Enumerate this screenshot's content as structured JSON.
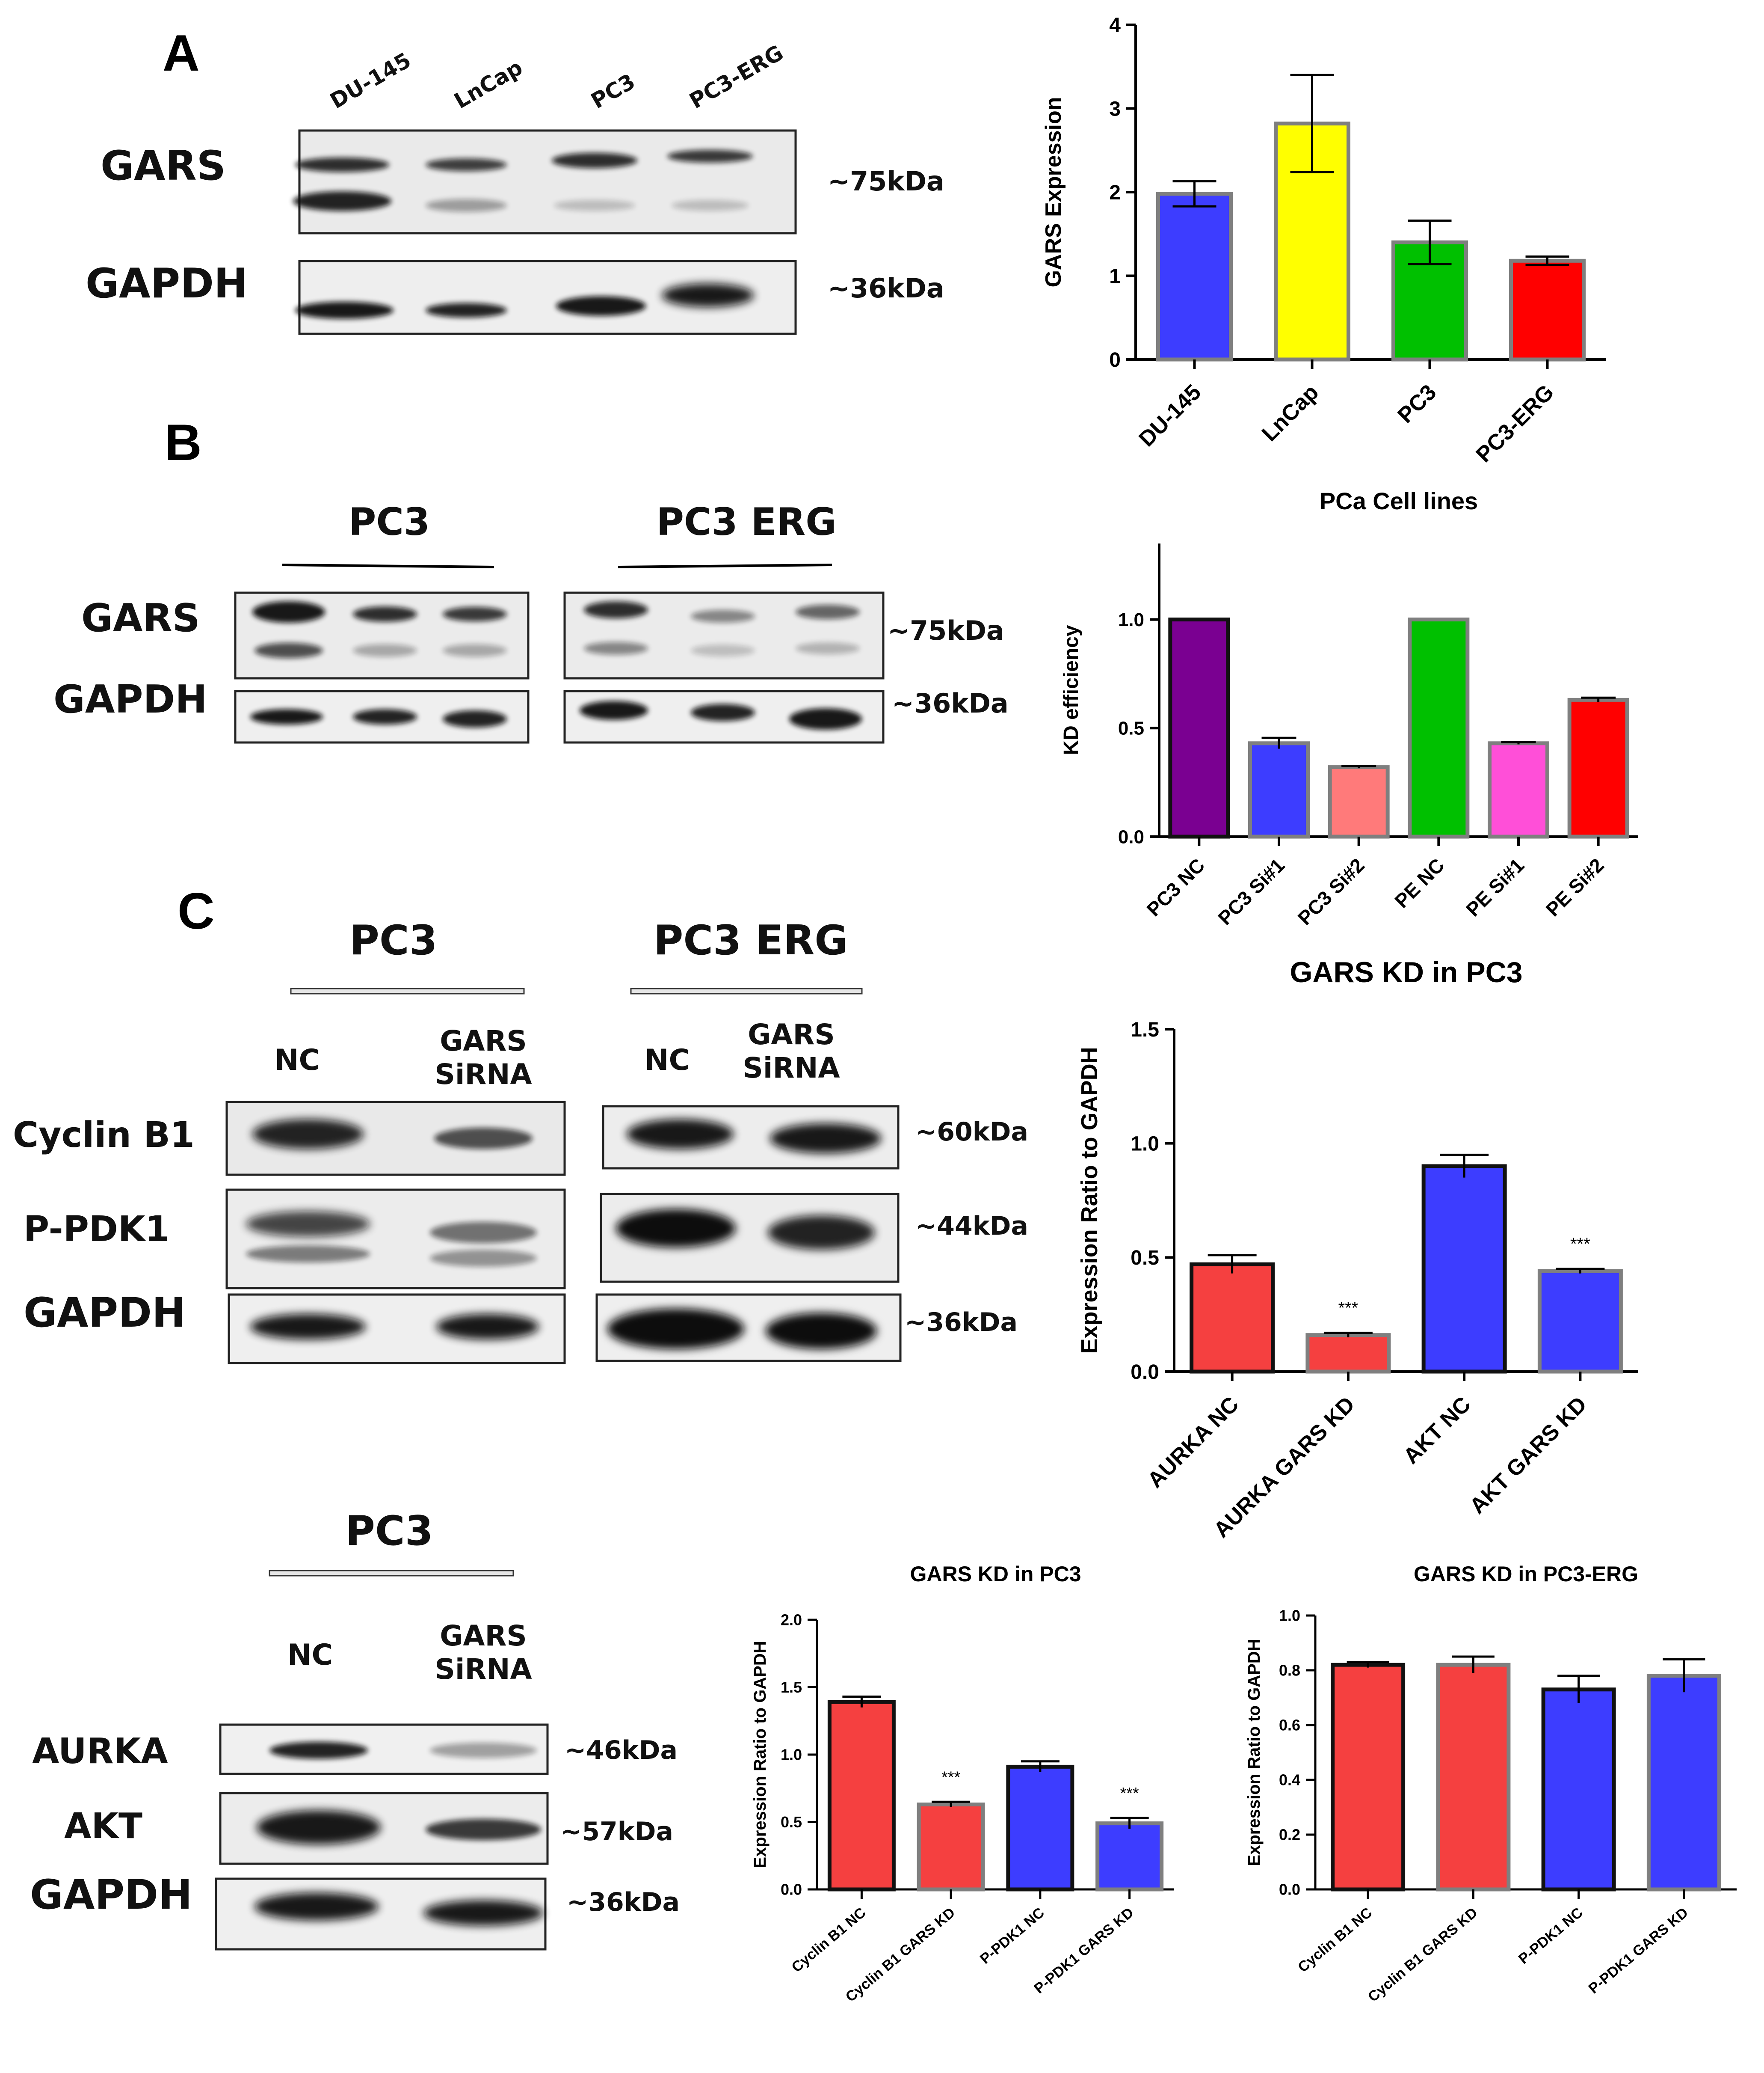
{
  "panels": {
    "a": "A",
    "b": "B",
    "c": "C"
  },
  "blot_a": {
    "lanes": [
      "DU-145",
      "LnCap",
      "PC3",
      "PC3-ERG"
    ],
    "rows": [
      "GARS",
      "GAPDH"
    ],
    "sizes": [
      "~75kDa",
      "~36kDa"
    ]
  },
  "blot_b": {
    "groups": [
      "PC3",
      "PC3 ERG"
    ],
    "rows": [
      "GARS",
      "GAPDH"
    ],
    "sizes": [
      "~75kDa",
      "~36kDa"
    ]
  },
  "blot_c1": {
    "groups": [
      "PC3",
      "PC3 ERG"
    ],
    "lanes": [
      "NC",
      "GARS SiRNA"
    ],
    "rows": [
      "Cyclin B1",
      "P-PDK1",
      "GAPDH"
    ],
    "sizes": [
      "~60kDa",
      "~44kDa",
      "~36kDa"
    ]
  },
  "blot_c2": {
    "group": "PC3",
    "lanes": [
      "NC",
      "GARS SiRNA"
    ],
    "rows": [
      "AURKA",
      "AKT",
      "GAPDH"
    ],
    "sizes": [
      "~46kDa",
      "~57kDa",
      "~36kDa"
    ]
  },
  "colors": {
    "blue": "#3d3dff",
    "yellow": "#ffff00",
    "green": "#00c000",
    "red": "#ff0000",
    "purple": "#7a0091",
    "salmon": "#ff7a7a",
    "pink": "#ff4fd8",
    "coral": "#f54040"
  },
  "chart_data": [
    {
      "id": "chartA",
      "type": "bar",
      "title": "",
      "xlabel": "",
      "ylabel": "GARS Expression",
      "categories": [
        "DU-145",
        "LnCap",
        "PC3",
        "PC3-ERG"
      ],
      "values": [
        1.98,
        2.82,
        1.4,
        1.18
      ],
      "errors": [
        0.15,
        0.58,
        0.26,
        0.05
      ],
      "colors": [
        "#3d3dff",
        "#ffff00",
        "#00c000",
        "#ff0000"
      ],
      "ylim": [
        0,
        4
      ],
      "yticks": [
        "0",
        "1",
        "2",
        "3",
        "4"
      ],
      "significance": [
        "",
        "",
        "",
        ""
      ]
    },
    {
      "id": "chartB",
      "type": "bar",
      "title": "PCa Cell lines",
      "xlabel": "",
      "ylabel": "KD efficiency",
      "categories": [
        "PC3 NC",
        "PC3 Si#1",
        "PC3 Si#2",
        "PE NC",
        "PE Si#1",
        "PE Si#2"
      ],
      "values": [
        1.0,
        0.43,
        0.32,
        1.0,
        0.43,
        0.63
      ],
      "errors": [
        0.0,
        0.025,
        0.005,
        0.0,
        0.005,
        0.01
      ],
      "colors": [
        "#7a0091",
        "#3d3dff",
        "#ff7a7a",
        "#00c000",
        "#ff4fd8",
        "#ff0000"
      ],
      "ylim": [
        0,
        1.35
      ],
      "yticks": [
        "0.0",
        "0.5",
        "1.0"
      ],
      "significance": [
        "",
        "",
        "",
        "",
        "",
        ""
      ]
    },
    {
      "id": "chartC1",
      "type": "bar",
      "title": "GARS KD in PC3",
      "xlabel": "",
      "ylabel": "Expression Ratio to GAPDH",
      "categories": [
        "AURKA NC",
        "AURKA GARS KD",
        "AKT NC",
        "AKT GARS KD"
      ],
      "values": [
        0.47,
        0.16,
        0.9,
        0.44
      ],
      "errors": [
        0.04,
        0.01,
        0.05,
        0.01
      ],
      "colors": [
        "#f54040",
        "#f54040",
        "#3d3dff",
        "#3d3dff"
      ],
      "ylim": [
        0,
        1.5
      ],
      "yticks": [
        "0.0",
        "0.5",
        "1.0",
        "1.5"
      ],
      "significance": [
        "",
        "***",
        "",
        "***"
      ]
    },
    {
      "id": "chartC2",
      "type": "bar",
      "title": "GARS KD in PC3",
      "xlabel": "",
      "ylabel": "Expression Ratio to GAPDH",
      "categories": [
        "Cyclin B1 NC",
        "Cyclin B1 GARS KD",
        "P-PDK1 NC",
        "P-PDK1 GARS KD"
      ],
      "values": [
        1.39,
        0.63,
        0.91,
        0.49
      ],
      "errors": [
        0.04,
        0.02,
        0.04,
        0.04
      ],
      "colors": [
        "#f54040",
        "#f54040",
        "#3d3dff",
        "#3d3dff"
      ],
      "ylim": [
        0,
        2.0
      ],
      "yticks": [
        "0.0",
        "0.5",
        "1.0",
        "1.5",
        "2.0"
      ],
      "significance": [
        "",
        "***",
        "",
        "***"
      ]
    },
    {
      "id": "chartC3",
      "type": "bar",
      "title": "GARS KD in PC3-ERG",
      "xlabel": "",
      "ylabel": "Expression Ratio to GAPDH",
      "categories": [
        "Cyclin B1 NC",
        "Cyclin B1 GARS KD",
        "P-PDK1 NC",
        "P-PDK1 GARS KD"
      ],
      "values": [
        0.82,
        0.82,
        0.73,
        0.78
      ],
      "errors": [
        0.01,
        0.03,
        0.05,
        0.06
      ],
      "colors": [
        "#f54040",
        "#f54040",
        "#3d3dff",
        "#3d3dff"
      ],
      "ylim": [
        0,
        1.0
      ],
      "yticks": [
        "0.0",
        "0.2",
        "0.4",
        "0.6",
        "0.8",
        "1.0"
      ],
      "significance": [
        "",
        "",
        "",
        ""
      ]
    }
  ]
}
